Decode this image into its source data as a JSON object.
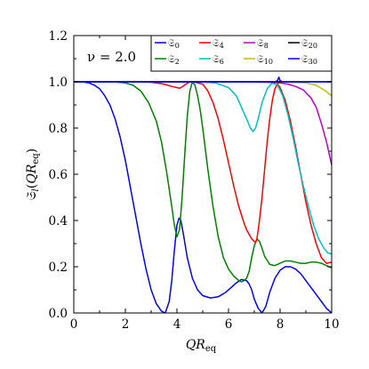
{
  "chart_data": {
    "type": "line",
    "xlabel": "QR_eq",
    "ylabel": "S_l(QR_eq)",
    "annotation": "ν = 2.0",
    "xlim": [
      0,
      10
    ],
    "ylim": [
      0,
      1.2
    ],
    "xticks": [
      "0",
      "2",
      "4",
      "6",
      "8",
      "10"
    ],
    "yticks": [
      "0.0",
      "0.2",
      "0.4",
      "0.6",
      "0.8",
      "1.0",
      "1.2"
    ],
    "grid": false,
    "legend_position": "top-right",
    "series": [
      {
        "name": "S_0",
        "color": "#0000ff",
        "x": [
          0,
          0.3,
          0.6,
          0.8,
          1.0,
          1.2,
          1.4,
          1.6,
          1.8,
          2.0,
          2.2,
          2.4,
          2.6,
          2.8,
          3.0,
          3.2,
          3.4,
          3.55,
          3.7,
          3.8,
          3.9,
          4.0,
          4.08,
          4.15,
          4.25,
          4.4,
          4.6,
          4.8,
          5.0,
          5.3,
          5.6,
          5.9,
          6.1,
          6.3,
          6.5,
          6.7,
          6.8,
          6.9,
          7.0,
          7.15,
          7.3,
          7.45,
          7.6,
          7.8,
          8.0,
          8.2,
          8.4,
          8.6,
          8.8,
          9.0,
          9.2,
          9.4,
          9.6,
          9.8,
          10.0
        ],
        "y": [
          1.0,
          1.0,
          0.995,
          0.985,
          0.97,
          0.94,
          0.9,
          0.84,
          0.76,
          0.66,
          0.54,
          0.42,
          0.3,
          0.19,
          0.1,
          0.04,
          0.008,
          0.0,
          0.05,
          0.14,
          0.27,
          0.38,
          0.41,
          0.4,
          0.34,
          0.24,
          0.15,
          0.1,
          0.075,
          0.065,
          0.07,
          0.09,
          0.11,
          0.13,
          0.145,
          0.14,
          0.125,
          0.1,
          0.06,
          0.02,
          0.0,
          0.03,
          0.09,
          0.15,
          0.185,
          0.2,
          0.2,
          0.19,
          0.17,
          0.14,
          0.11,
          0.08,
          0.05,
          0.02,
          0.0
        ]
      },
      {
        "name": "S_2",
        "color": "#008000",
        "x": [
          0,
          1.0,
          1.5,
          2.0,
          2.3,
          2.6,
          2.9,
          3.2,
          3.4,
          3.6,
          3.8,
          3.9,
          4.0,
          4.1,
          4.2,
          4.3,
          4.4,
          4.5,
          4.6,
          4.7,
          4.8,
          4.9,
          5.0,
          5.2,
          5.4,
          5.6,
          5.8,
          6.0,
          6.2,
          6.4,
          6.5,
          6.6,
          6.7,
          6.8,
          6.9,
          7.0,
          7.1,
          7.2,
          7.3,
          7.4,
          7.6,
          7.8,
          8.0,
          8.2,
          8.4,
          8.6,
          8.8,
          9.0,
          9.2,
          9.4,
          9.6,
          9.8,
          10.0
        ],
        "y": [
          1.0,
          1.0,
          1.0,
          0.995,
          0.985,
          0.96,
          0.91,
          0.83,
          0.74,
          0.61,
          0.46,
          0.38,
          0.33,
          0.36,
          0.5,
          0.68,
          0.85,
          0.96,
          1.0,
          0.985,
          0.94,
          0.88,
          0.8,
          0.62,
          0.46,
          0.33,
          0.24,
          0.19,
          0.16,
          0.14,
          0.135,
          0.14,
          0.15,
          0.18,
          0.24,
          0.29,
          0.32,
          0.31,
          0.28,
          0.245,
          0.21,
          0.205,
          0.215,
          0.225,
          0.225,
          0.22,
          0.215,
          0.215,
          0.22,
          0.22,
          0.215,
          0.205,
          0.195
        ]
      },
      {
        "name": "S_4",
        "color": "#ff0000",
        "x": [
          0,
          2.0,
          3.0,
          3.5,
          3.8,
          4.0,
          4.1,
          4.2,
          4.35,
          4.5,
          4.7,
          5.0,
          5.2,
          5.4,
          5.6,
          5.8,
          6.0,
          6.2,
          6.4,
          6.6,
          6.7,
          6.8,
          6.9,
          7.0,
          7.05,
          7.1,
          7.2,
          7.3,
          7.4,
          7.5,
          7.6,
          7.7,
          7.8,
          7.9,
          8.0,
          8.2,
          8.4,
          8.6,
          8.8,
          9.0,
          9.2,
          9.4,
          9.6,
          9.8,
          10.0
        ],
        "y": [
          1.0,
          1.0,
          0.998,
          0.99,
          0.98,
          0.975,
          0.972,
          0.978,
          0.99,
          1.0,
          0.998,
          0.99,
          0.96,
          0.91,
          0.84,
          0.75,
          0.65,
          0.55,
          0.46,
          0.39,
          0.36,
          0.34,
          0.32,
          0.31,
          0.305,
          0.32,
          0.4,
          0.5,
          0.62,
          0.74,
          0.84,
          0.92,
          0.97,
          0.99,
          0.975,
          0.92,
          0.83,
          0.72,
          0.6,
          0.48,
          0.38,
          0.3,
          0.24,
          0.215,
          0.22
        ]
      },
      {
        "name": "S_6",
        "color": "#00bfbf",
        "x": [
          0,
          4.0,
          5.0,
          5.5,
          6.0,
          6.3,
          6.5,
          6.7,
          6.85,
          6.95,
          7.05,
          7.15,
          7.3,
          7.5,
          7.7,
          7.9,
          8.1,
          8.3,
          8.5,
          8.7,
          8.9,
          9.1,
          9.3,
          9.5,
          9.7,
          9.85,
          10.0
        ],
        "y": [
          1.0,
          1.0,
          0.999,
          0.995,
          0.975,
          0.94,
          0.89,
          0.84,
          0.8,
          0.785,
          0.8,
          0.84,
          0.91,
          0.97,
          0.995,
          0.985,
          0.94,
          0.86,
          0.76,
          0.65,
          0.55,
          0.46,
          0.38,
          0.32,
          0.28,
          0.26,
          0.255
        ]
      },
      {
        "name": "S_8",
        "color": "#bf00bf",
        "x": [
          0,
          6.0,
          7.0,
          7.5,
          8.0,
          8.3,
          8.6,
          8.9,
          9.2,
          9.4,
          9.6,
          9.8,
          10.0
        ],
        "y": [
          1.0,
          1.0,
          0.999,
          0.998,
          0.995,
          0.99,
          0.98,
          0.965,
          0.93,
          0.89,
          0.82,
          0.74,
          0.64
        ]
      },
      {
        "name": "S_10",
        "color": "#bfbf00",
        "x": [
          0,
          8.0,
          9.0,
          9.4,
          9.7,
          10.0
        ],
        "y": [
          1.0,
          1.0,
          0.995,
          0.985,
          0.965,
          0.94
        ]
      },
      {
        "name": "S_20",
        "color": "#000000",
        "x": [
          0,
          10.0
        ],
        "y": [
          1.0,
          1.0
        ]
      },
      {
        "name": "S_30",
        "color": "#0000ff",
        "x": [
          0,
          7.8,
          7.9,
          7.95,
          8.0,
          8.1,
          10.0
        ],
        "y": [
          1.0,
          1.0,
          1.005,
          1.02,
          1.005,
          1.0,
          1.0
        ]
      }
    ]
  }
}
